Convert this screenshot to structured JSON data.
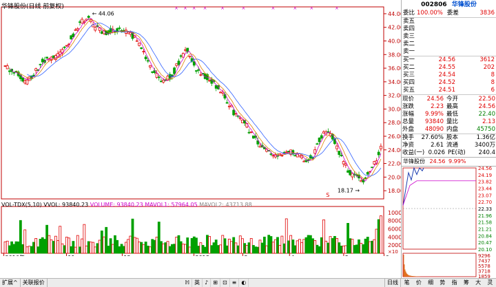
{
  "chart": {
    "title": "华锋股份(日线 前复权)",
    "price_axis": [
      "44.00",
      "42.00",
      "40.00",
      "38.00",
      "36.00",
      "34.00",
      "32.00",
      "30.00",
      "28.00",
      "26.00",
      "24.00",
      "22.00",
      "20.00",
      "18.00"
    ],
    "high_label": "44.06",
    "low_label": "18.17",
    "s_marker": "S",
    "vol_indicator": {
      "name": "VOL-TDX(5,10)",
      "vvol": "VVOL: 93840.23",
      "volume": "VOLUME: 93840.23",
      "mavol1": "MAVOL1: 57964.05",
      "mavol2": "MAVOL2: 43713.88"
    },
    "vol_axis": [
      "10000",
      "8000",
      "6000",
      "4000",
      "2000"
    ],
    "vol_unit": "×10",
    "x_labels": [
      "2016年",
      "11",
      "12",
      "2018",
      "3",
      "4",
      "5",
      "6"
    ],
    "bottom_label": "日线"
  },
  "colors": {
    "up": "#e00000",
    "down": "#00a000",
    "ma5": "#cc00cc",
    "ma10": "#e08000",
    "ma20": "#3060ff"
  },
  "quote": {
    "code": "002806",
    "name": "华锋股份",
    "weibi_label": "委比",
    "weibi": "100.00%",
    "weicha_label": "委差",
    "weicha": "3836",
    "sells": [
      {
        "label": "卖五",
        "price": "",
        "vol": ""
      },
      {
        "label": "卖四",
        "price": "",
        "vol": ""
      },
      {
        "label": "卖三",
        "price": "",
        "vol": ""
      },
      {
        "label": "卖二",
        "price": "",
        "vol": ""
      },
      {
        "label": "卖一",
        "price": "",
        "vol": ""
      }
    ],
    "buys": [
      {
        "label": "买一",
        "price": "24.56",
        "vol": "3612"
      },
      {
        "label": "买二",
        "price": "24.55",
        "vol": "202"
      },
      {
        "label": "买三",
        "price": "24.54",
        "vol": "8"
      },
      {
        "label": "买四",
        "price": "24.52",
        "vol": "8"
      },
      {
        "label": "买五",
        "price": "24.51",
        "vol": "6"
      }
    ],
    "stats": [
      {
        "k": "现价",
        "v": "24.56",
        "k2": "今开",
        "v2": "22.50"
      },
      {
        "k": "涨跌",
        "v": "2.23",
        "k2": "最高",
        "v2": "24.56"
      },
      {
        "k": "涨幅",
        "v": "9.99%",
        "k2": "最低",
        "v2": "22.40"
      },
      {
        "k": "总量",
        "v": "93840",
        "k2": "量比",
        "v2": "2.13"
      },
      {
        "k": "外盘",
        "v": "48090",
        "k2": "内盘",
        "v2": "45750"
      },
      {
        "k": "换手",
        "v": "27.60%",
        "k2": "股本",
        "v2": "1.36亿"
      },
      {
        "k": "净资",
        "v": "2.61",
        "k2": "流通",
        "v2": "3400万"
      },
      {
        "k": "收益(一)",
        "v": "0.026",
        "k2": "PE(动)",
        "v2": "240.4"
      }
    ],
    "mini_title": "华锋股份",
    "mini_price": "24.56",
    "mini_pct": "9.99%",
    "mini_axis": [
      "24.56",
      "24.19",
      "23.82",
      "23.44",
      "23.07",
      "22.70",
      "22.33",
      "21.96",
      "21.58",
      "21.21",
      "20.84",
      "20.47",
      "20.10"
    ],
    "mini_vol_axis": [
      "9296",
      "7437",
      "5578",
      "3718",
      "1859"
    ]
  },
  "bottom": {
    "tabs": [
      "扩展^",
      "关联报价"
    ],
    "buttons": [
      "ℍ",
      "英",
      "♪",
      "⊞",
      "⊡",
      "≡",
      "◐"
    ],
    "right_buttons": [
      "笔",
      "价",
      "细",
      "势",
      "指",
      "筹",
      "大",
      "灵"
    ]
  }
}
